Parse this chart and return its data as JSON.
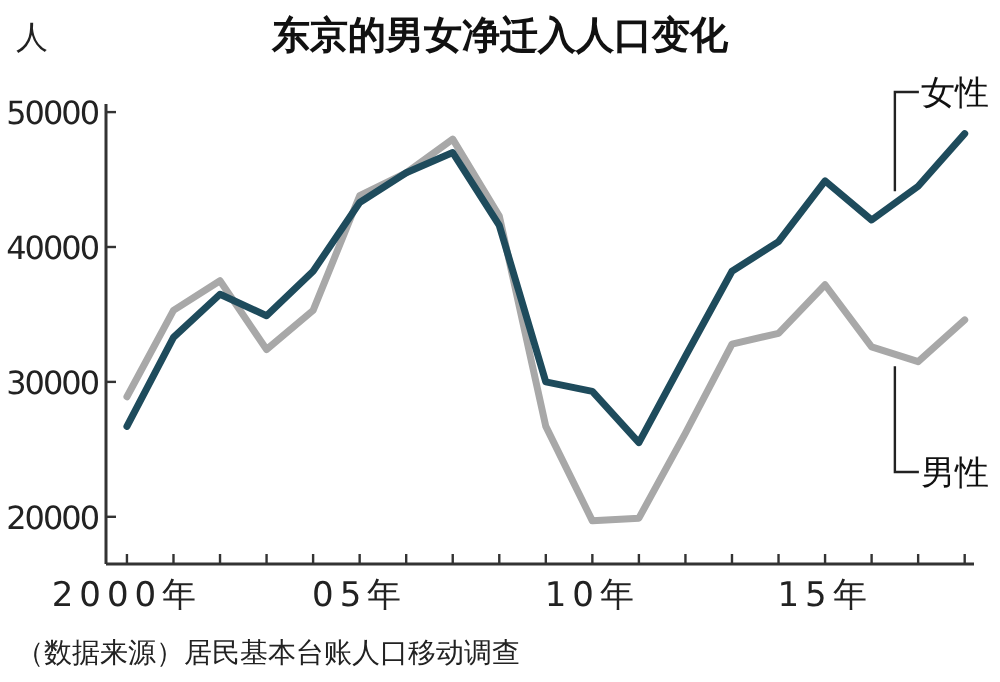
{
  "chart_data": {
    "type": "line",
    "title": "东京的男女净迁入人口变化",
    "ylabel": "人",
    "categories": [
      "2000年",
      null,
      null,
      null,
      null,
      "05年",
      null,
      null,
      null,
      null,
      "10年",
      null,
      null,
      null,
      null,
      "15年",
      null,
      null,
      null
    ],
    "series": [
      {
        "name": "女性",
        "color": "#1e4b5c",
        "values": [
          26700,
          33300,
          36500,
          34900,
          38200,
          43300,
          45500,
          47000,
          41600,
          30000,
          29300,
          25500,
          31900,
          38200,
          40400,
          44900,
          42000,
          44500,
          48400
        ]
      },
      {
        "name": "男性",
        "color": "#a8a8a8",
        "values": [
          28900,
          35300,
          37500,
          32400,
          35300,
          43800,
          45500,
          48000,
          42300,
          26700,
          19700,
          19900,
          26200,
          32800,
          33600,
          37200,
          32600,
          31500,
          34600
        ]
      }
    ],
    "ylim": [
      16500,
      50600
    ],
    "yticks": [
      20000,
      30000,
      40000,
      50000
    ],
    "grid": false,
    "marker": "none",
    "line_style": "solid",
    "annotations": [
      "（数据来源）居民基本台账人口移动调查"
    ]
  }
}
